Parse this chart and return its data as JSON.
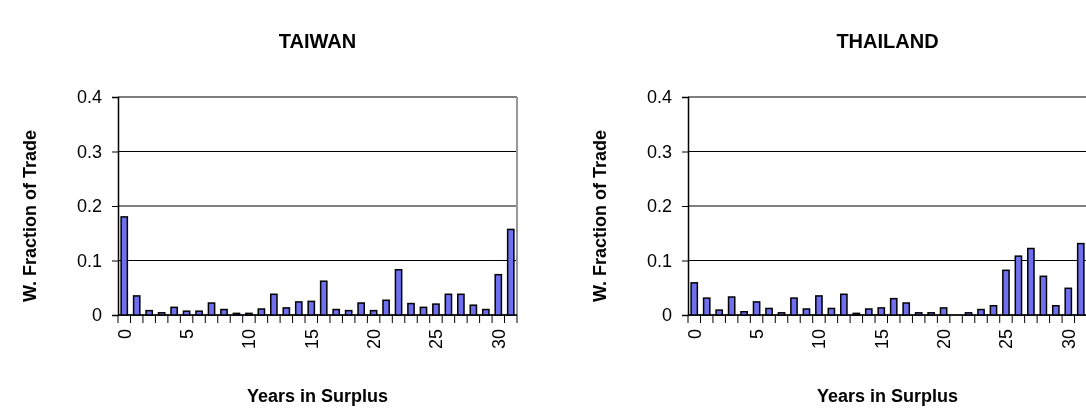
{
  "chart_data": [
    {
      "type": "bar",
      "title": "TAIWAN",
      "xlabel": "Years in Surplus",
      "ylabel": "W. Fraction of Trade",
      "categories": [
        "0",
        null,
        null,
        null,
        null,
        "5",
        null,
        null,
        null,
        null,
        "10",
        null,
        null,
        null,
        null,
        "15",
        null,
        null,
        null,
        null,
        "20",
        null,
        null,
        null,
        null,
        "25",
        null,
        null,
        null,
        null,
        "30",
        null
      ],
      "values": [
        0.18,
        0.035,
        0.008,
        0.004,
        0.014,
        0.007,
        0.007,
        0.022,
        0.01,
        0.003,
        0.003,
        0.011,
        0.038,
        0.013,
        0.024,
        0.025,
        0.062,
        0.01,
        0.008,
        0.022,
        0.008,
        0.027,
        0.083,
        0.021,
        0.014,
        0.02,
        0.038,
        0.038,
        0.018,
        0.01,
        0.074,
        0.157
      ],
      "color": "#6f6ff0",
      "ylim": [
        0,
        0.4
      ],
      "yticks": [
        0,
        0.1,
        0.2,
        0.3,
        0.4
      ],
      "grid": "y"
    },
    {
      "type": "bar",
      "title": "THAILAND",
      "xlabel": "Years in Surplus",
      "ylabel": "W. Fraction of Trade",
      "categories": [
        "0",
        null,
        null,
        null,
        null,
        "5",
        null,
        null,
        null,
        null,
        "10",
        null,
        null,
        null,
        null,
        "15",
        null,
        null,
        null,
        null,
        "20",
        null,
        null,
        null,
        null,
        "25",
        null,
        null,
        null,
        null,
        "30",
        null
      ],
      "values": [
        0.059,
        0.031,
        0.009,
        0.033,
        0.006,
        0.024,
        0.012,
        0.004,
        0.031,
        0.011,
        0.035,
        0.012,
        0.038,
        0.003,
        0.011,
        0.013,
        0.03,
        0.022,
        0.004,
        0.004,
        0.013,
        0,
        0.004,
        0.01,
        0.017,
        0.082,
        0.108,
        0.122,
        0.071,
        0.017,
        0.049,
        0.131
      ],
      "color": "#6f6ff0",
      "ylim": [
        0,
        0.4
      ],
      "yticks": [
        0,
        0.1,
        0.2,
        0.3,
        0.4
      ],
      "grid": "y"
    }
  ]
}
